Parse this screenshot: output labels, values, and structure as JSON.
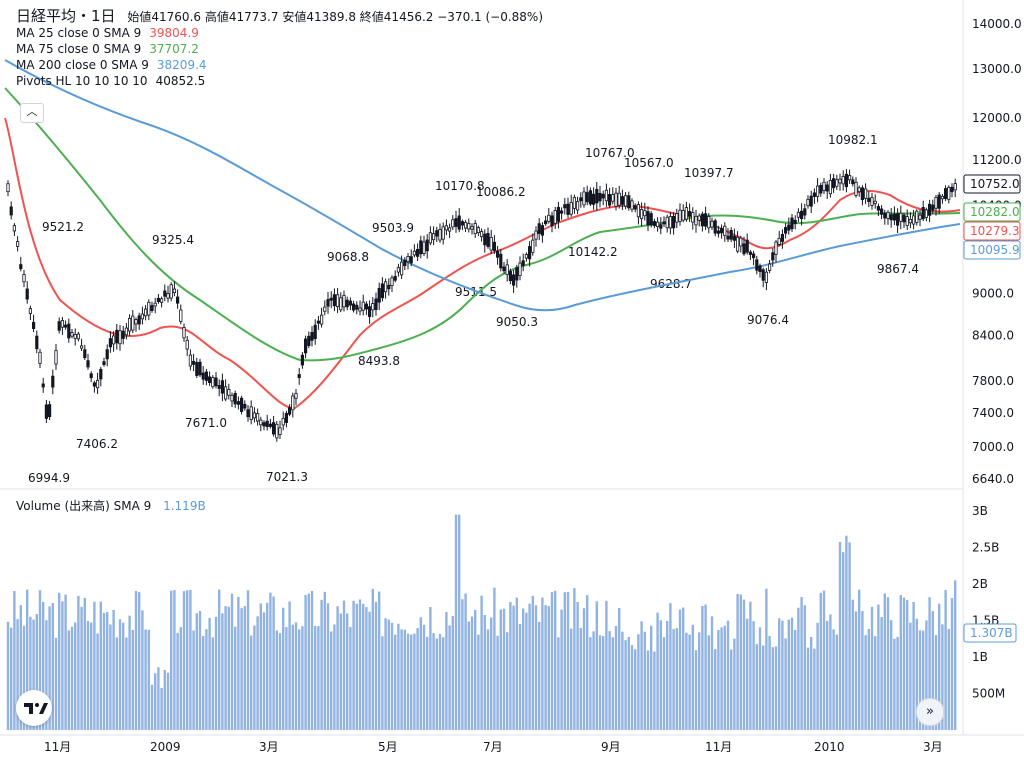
{
  "header": {
    "title": "日経平均・1日",
    "open_label": "始値",
    "open": "41760.6",
    "high_label": "高値",
    "high": "41773.7",
    "low_label": "安値",
    "low": "41389.8",
    "close_label": "終値",
    "close": "41456.2",
    "change": "−370.1 (−0.88%)"
  },
  "indicators": [
    {
      "label": "MA 25 close 0 SMA 9",
      "value": "39804.9",
      "color": "#ef5350"
    },
    {
      "label": "MA 75 close 0 SMA 9",
      "value": "37707.2",
      "color": "#4caf50"
    },
    {
      "label": "MA 200 close 0 SMA 9",
      "value": "38209.4",
      "color": "#5b9bd5"
    },
    {
      "label": "Pivots HL 10 10 10 10",
      "value": "40852.5",
      "color": "#131722"
    }
  ],
  "collapse_icon": "chevron-up",
  "volume_legend": {
    "label": "Volume (出来高) SMA 9",
    "value": "1.119B",
    "color": "#5b9bd5"
  },
  "price_axis": {
    "ticks": [
      "14000.0",
      "13000.0",
      "12000.0",
      "11200.0",
      "10400.0",
      "9000.0",
      "8400.0",
      "7800.0",
      "7400.0",
      "7000.0",
      "6640.0"
    ],
    "labels": [
      {
        "text": "10752.0",
        "color": "#131722"
      },
      {
        "text": "10282.0",
        "color": "#4caf50"
      },
      {
        "text": "10279.3",
        "color": "#ef5350"
      },
      {
        "text": "10095.9",
        "color": "#5b9bd5"
      }
    ]
  },
  "volume_axis": {
    "ticks": [
      "3B",
      "2.5B",
      "2B",
      "1.5B",
      "1B",
      "500M"
    ],
    "label": "1.307B"
  },
  "time_axis": [
    "11月",
    "2009",
    "3月",
    "5月",
    "7月",
    "9月",
    "11月",
    "2010",
    "3月"
  ],
  "chart_data": {
    "type": "candlestick",
    "y_scale": "log",
    "ylim": [
      6640,
      14000
    ],
    "pivots": [
      {
        "value": 6994.9,
        "kind": "low"
      },
      {
        "value": 9521.2,
        "kind": "high"
      },
      {
        "value": 7406.2,
        "kind": "low"
      },
      {
        "value": 9325.4,
        "kind": "high"
      },
      {
        "value": 7671.0,
        "kind": "low"
      },
      {
        "value": 7021.3,
        "kind": "low"
      },
      {
        "value": 9068.8,
        "kind": "high"
      },
      {
        "value": 8493.8,
        "kind": "low"
      },
      {
        "value": 9503.9,
        "kind": "high"
      },
      {
        "value": 10170.8,
        "kind": "high"
      },
      {
        "value": 10086.2,
        "kind": "high"
      },
      {
        "value": 9511.5,
        "kind": "low"
      },
      {
        "value": 9050.3,
        "kind": "low"
      },
      {
        "value": 10767.0,
        "kind": "high"
      },
      {
        "value": 10567.0,
        "kind": "high"
      },
      {
        "value": 10142.2,
        "kind": "low"
      },
      {
        "value": 10397.7,
        "kind": "high"
      },
      {
        "value": 9628.7,
        "kind": "low"
      },
      {
        "value": 9076.4,
        "kind": "low"
      },
      {
        "value": 10982.1,
        "kind": "high"
      },
      {
        "value": 9867.4,
        "kind": "low"
      }
    ],
    "series": [
      {
        "name": "MA 25",
        "color": "#ef5350"
      },
      {
        "name": "MA 75",
        "color": "#4caf50"
      },
      {
        "name": "MA 200",
        "color": "#5b9bd5"
      }
    ],
    "volume_max": 3
  }
}
